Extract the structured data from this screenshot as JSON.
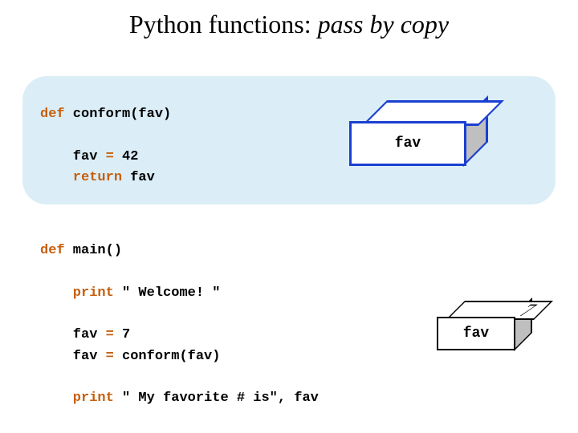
{
  "title_plain": "Python functions: ",
  "title_italic": "pass by copy",
  "conform": {
    "line1_kw": "def",
    "line1_rest": " conform(fav)",
    "line2_a": "    fav ",
    "line2_kw": "=",
    "line2_b": " 42",
    "line3_kw": "    return",
    "line3_rest": " fav"
  },
  "main": {
    "line1_kw": "def",
    "line1_rest": " main()",
    "line2_kw": "    print",
    "line2_rest": " \" Welcome! \"",
    "line3_a": "    fav ",
    "line3_kw": "=",
    "line3_b": " 7",
    "line4_a": "    fav ",
    "line4_kw": "=",
    "line4_b": " conform(fav)",
    "line5_kw": "    print",
    "line5_rest": " \" My favorite # is\", fav"
  },
  "cube1": {
    "label": "fav",
    "border_color": "#1a3fd1",
    "side_fill": "#bfbfbf",
    "front_fill": "#ffffff"
  },
  "cube2": {
    "top_value": "7",
    "label": "fav",
    "border_color": "#000000",
    "side_fill": "#bfbfbf",
    "front_fill": "#ffffff"
  },
  "style": {
    "panel_bg": "#dbeef7",
    "keyword_color": "#c65f0d",
    "title_fontsize": 32,
    "code_fontsize": 17
  }
}
